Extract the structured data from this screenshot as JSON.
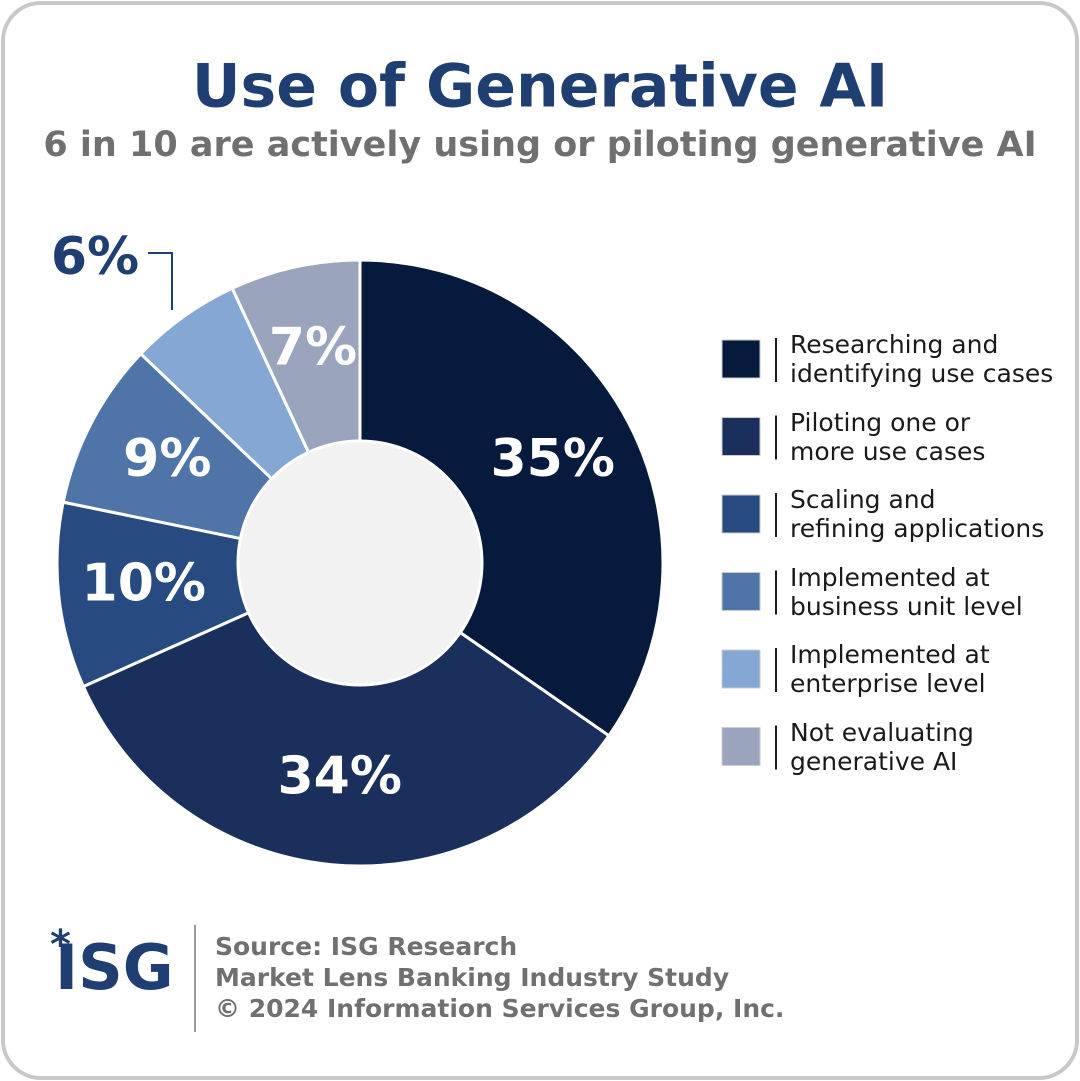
{
  "chart_data": {
    "type": "pie",
    "title": "Use of Generative AI",
    "subtitle": "6 in 10 are actively using or piloting generative AI",
    "categories": [
      "Researching and\nidentifying use cases",
      "Piloting one or\nmore use cases",
      "Scaling and\nrefining applications",
      "Implemented at\nbusiness unit level",
      "Implemented at\nenterprise level",
      "Not evaluating\ngenerative AI"
    ],
    "values": [
      35,
      34,
      10,
      9,
      6,
      7
    ],
    "value_labels": [
      "35%",
      "34%",
      "10%",
      "9%",
      "6%",
      "7%"
    ],
    "colors": [
      "#051a3c",
      "#1b2f5c",
      "#274a80",
      "#4f75a8",
      "#85a7d4",
      "#9aa5bd"
    ],
    "logo": "ISG",
    "notes": [
      "Source: ISG Research",
      "Market Lens Banking Industry Study",
      "© 2024 Information Services Group, Inc."
    ]
  }
}
